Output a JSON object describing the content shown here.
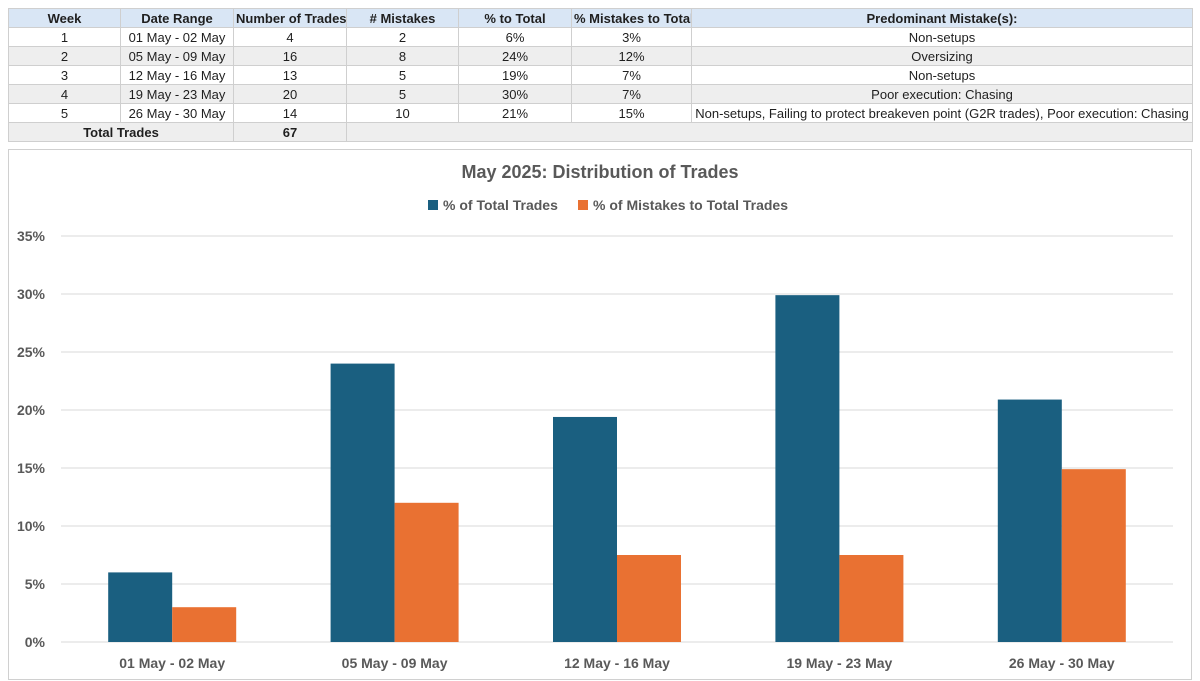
{
  "table": {
    "headers": [
      "Week",
      "Date Range",
      "Number of Trades",
      "# Mistakes",
      "% to Total",
      "% Mistakes to Total",
      "Predominant Mistake(s):"
    ],
    "rows": [
      [
        "1",
        "01 May - 02 May",
        "4",
        "2",
        "6%",
        "3%",
        "Non-setups"
      ],
      [
        "2",
        "05 May - 09 May",
        "16",
        "8",
        "24%",
        "12%",
        "Oversizing"
      ],
      [
        "3",
        "12 May - 16 May",
        "13",
        "5",
        "19%",
        "7%",
        "Non-setups"
      ],
      [
        "4",
        "19 May - 23 May",
        "20",
        "5",
        "30%",
        "7%",
        "Poor execution: Chasing"
      ],
      [
        "5",
        "26 May - 30 May",
        "14",
        "10",
        "21%",
        "15%",
        "Non-setups, Failing to protect breakeven point (G2R trades), Poor execution: Chasing"
      ]
    ],
    "total_label": "Total Trades",
    "total_value": "67"
  },
  "colors": {
    "series_total": "#1a5f80",
    "series_mistakes": "#e97132",
    "header_bg": "#d9e6f5"
  },
  "chart_data": {
    "type": "bar",
    "title": "May 2025: Distribution of Trades",
    "categories": [
      "01 May - 02 May",
      "05 May - 09 May",
      "12 May - 16 May",
      "19 May - 23 May",
      "26 May - 30 May"
    ],
    "series": [
      {
        "name": "% of Total Trades",
        "values": [
          6,
          24,
          19.4,
          29.9,
          20.9
        ],
        "color": "#1a5f80"
      },
      {
        "name": "% of Mistakes to Total Trades",
        "values": [
          3,
          12,
          7.5,
          7.5,
          14.9
        ],
        "color": "#e97132"
      }
    ],
    "ylim": [
      0,
      35
    ],
    "yticks": [
      0,
      5,
      10,
      15,
      20,
      25,
      30,
      35
    ],
    "ytick_labels": [
      "0%",
      "5%",
      "10%",
      "15%",
      "20%",
      "25%",
      "30%",
      "35%"
    ],
    "legend_position": "top",
    "grid": true,
    "xlabel": "",
    "ylabel": ""
  }
}
